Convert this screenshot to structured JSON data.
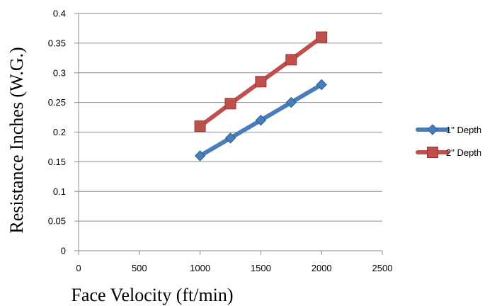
{
  "chart_data": {
    "type": "line",
    "title": "",
    "xlabel": "Face Velocity (ft/min)",
    "ylabel": "Resistance Inches (W.G.)",
    "xlim": [
      0,
      2500
    ],
    "ylim": [
      0,
      0.4
    ],
    "x_ticks": [
      "0",
      "500",
      "1000",
      "1500",
      "2000",
      "2500"
    ],
    "y_ticks": [
      "0",
      "0.05",
      "0.1",
      "0.15",
      "0.2",
      "0.25",
      "0.3",
      "0.35",
      "0.4"
    ],
    "grid": "horizontal",
    "legend_position": "right",
    "series": [
      {
        "name": "1\" Depth",
        "color": "#4a7ebb",
        "marker": "diamond",
        "x": [
          1000,
          1250,
          1500,
          1750,
          2000
        ],
        "y": [
          0.16,
          0.19,
          0.22,
          0.25,
          0.28
        ]
      },
      {
        "name": "2\" Depth",
        "color": "#c0504d",
        "marker": "square",
        "x": [
          1000,
          1250,
          1500,
          1750,
          2000
        ],
        "y": [
          0.21,
          0.248,
          0.285,
          0.322,
          0.36
        ]
      }
    ]
  }
}
